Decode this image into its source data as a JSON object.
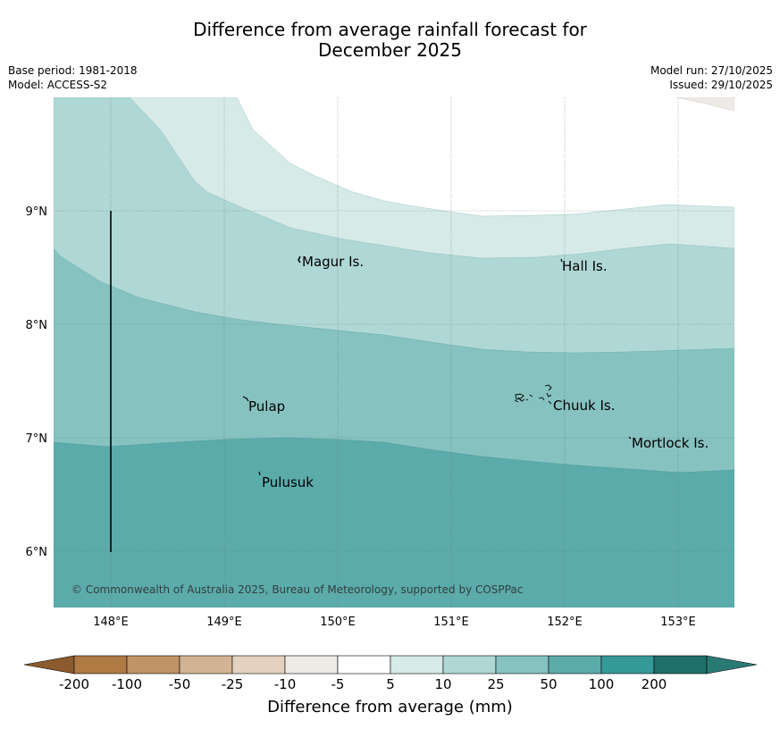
{
  "title_line1": "Difference from average rainfall forecast for",
  "title_line2": "December 2025",
  "base_period": "Base period: 1981-2018",
  "model": "Model: ACCESS-S2",
  "model_run": "Model run: 27/10/2025",
  "issued": "Issued: 29/10/2025",
  "copyright": "© Commonwealth of Australia 2025, Bureau of Meteorology, supported by COSPPac",
  "map": {
    "lon_range": [
      147.5,
      153.5
    ],
    "lat_range": [
      5.5,
      10.0
    ],
    "lon_ticks": [
      "148°E",
      "149°E",
      "150°E",
      "151°E",
      "152°E",
      "153°E"
    ],
    "lat_ticks": [
      "9°N",
      "8°N",
      "7°N",
      "6°N"
    ],
    "islands": [
      {
        "name": "Magur Is."
      },
      {
        "name": "Hall Is."
      },
      {
        "name": "Pulap"
      },
      {
        "name": "Chuuk Is."
      },
      {
        "name": "Mortlock Is."
      },
      {
        "name": "Pulusuk"
      }
    ],
    "contour_bands_mm": [
      "5–10",
      "10–25",
      "25–50",
      "50–100"
    ]
  },
  "colorbar": {
    "title": "Difference from average (mm)",
    "tick_labels": [
      "-200",
      "-100",
      "-50",
      "-25",
      "-10",
      "-5",
      "5",
      "10",
      "25",
      "50",
      "100",
      "200"
    ],
    "colors": [
      "#b07a45",
      "#c09366",
      "#d2b394",
      "#e4d2c0",
      "#eeebe6",
      "#ffffff",
      "#d6eae8",
      "#afd7d5",
      "#86c2c0",
      "#5cabab",
      "#359a97",
      "#1f6f6a"
    ],
    "low_extend_color": "#8c5a2c",
    "high_extend_color": "#2a7a74"
  }
}
